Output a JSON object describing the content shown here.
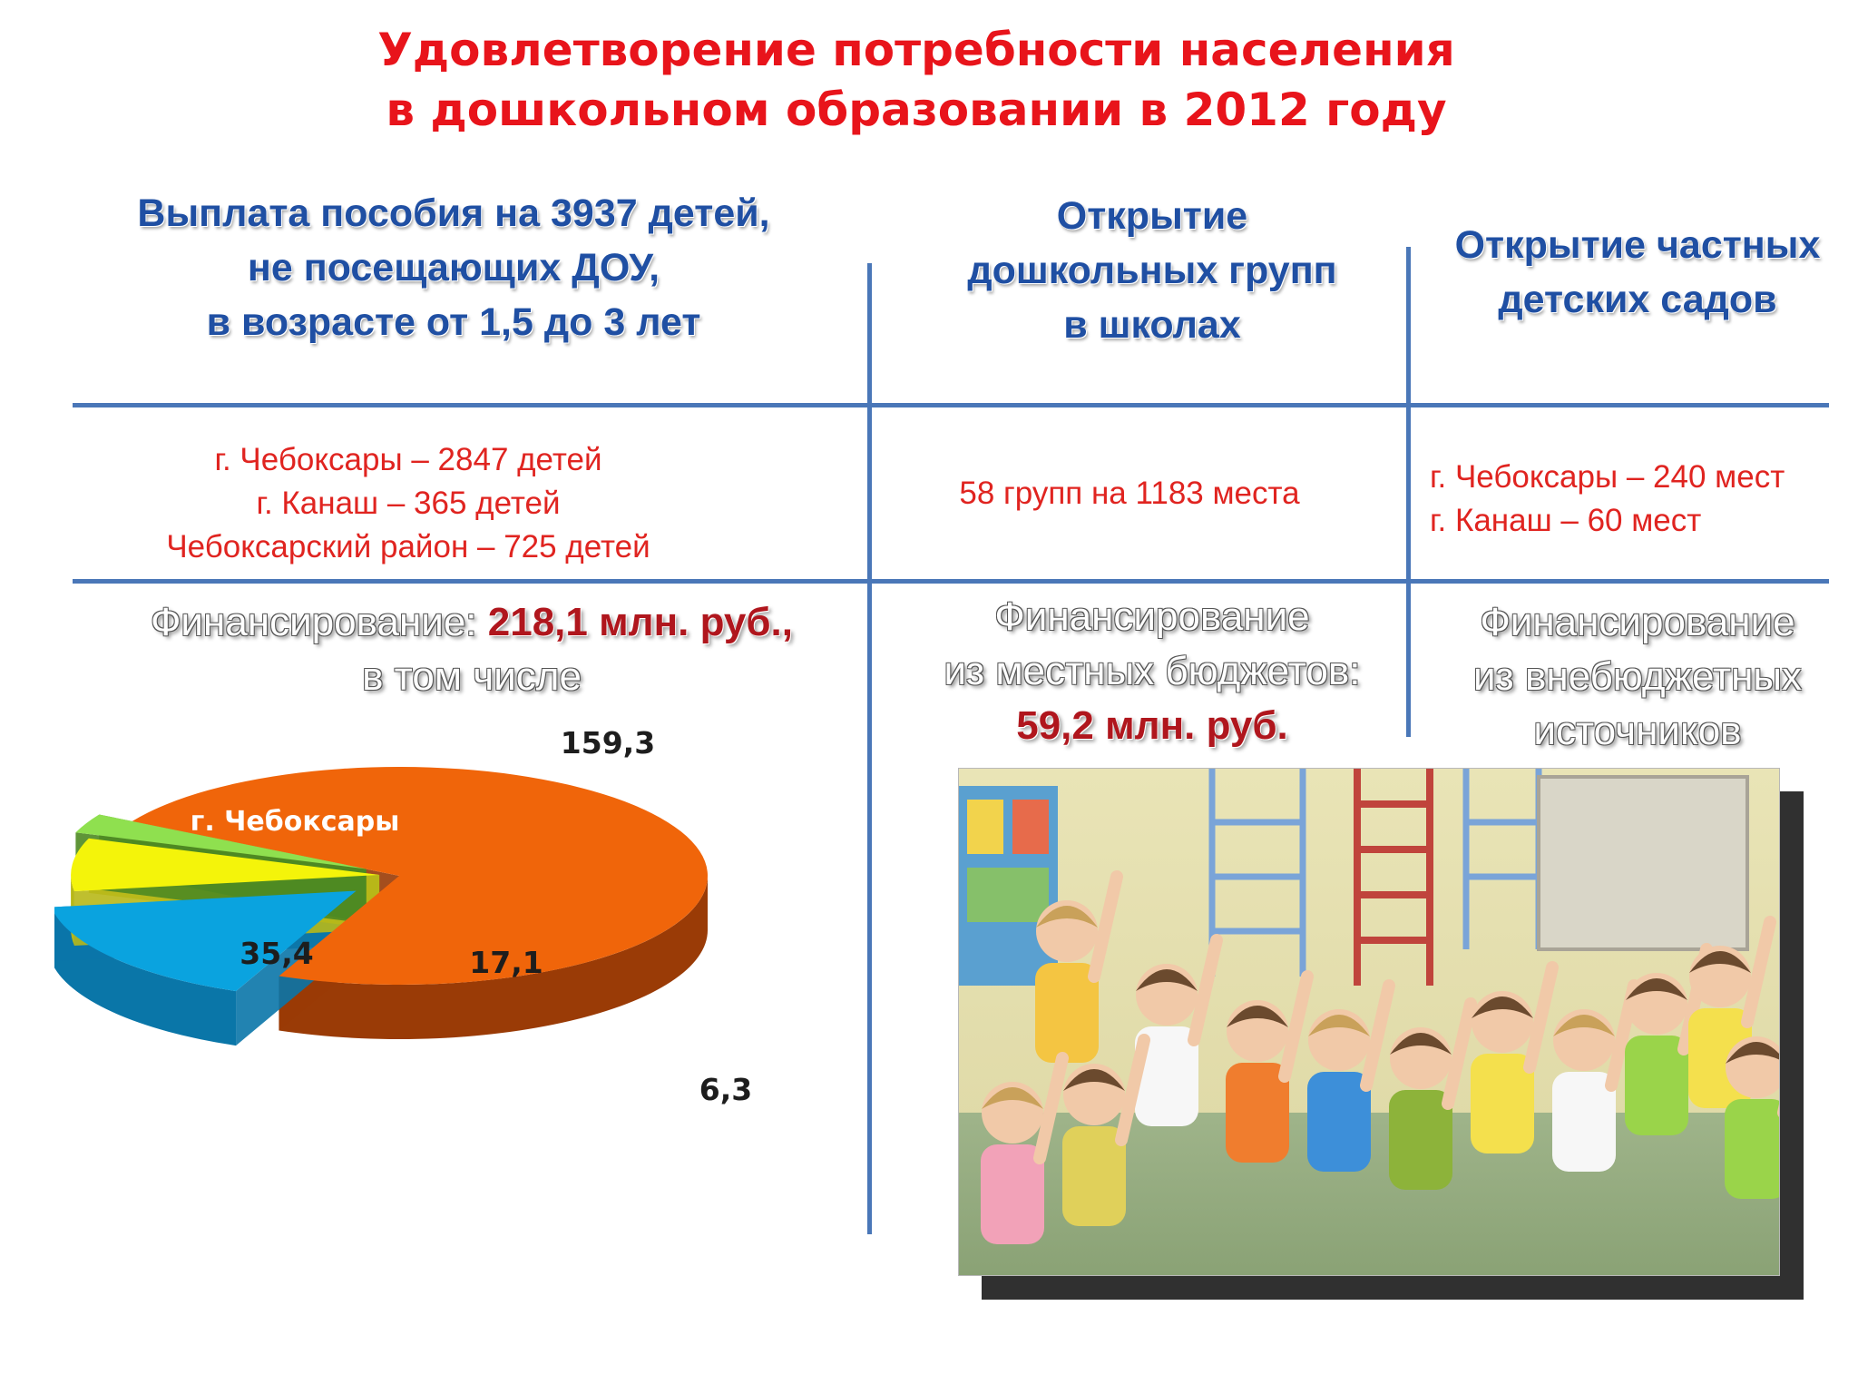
{
  "title": {
    "line1": "Удовлетворение потребности населения",
    "line2": "в дошкольном образовании в 2012 году"
  },
  "columns": [
    {
      "header": [
        "Выплата пособия на 3937 детей,",
        "не посещающих ДОУ,",
        "в возрасте от 1,5 до 3 лет"
      ],
      "details": [
        "г. Чебоксары – 2847 детей",
        "г. Канаш – 365 детей",
        "Чебоксарский район – 725 детей"
      ],
      "funding": {
        "prefix": "Финансирование: ",
        "amount": "218,1 млн. руб.,",
        "suffix": "в том числе"
      }
    },
    {
      "header": [
        "Открытие",
        "дошкольных групп",
        "в школах"
      ],
      "details": [
        "58 групп на 1183 места"
      ],
      "funding": {
        "line1": "Финансирование",
        "line2": "из местных бюджетов:",
        "amount": "59,2 млн. руб."
      }
    },
    {
      "header": [
        "Открытие частных",
        "детских садов"
      ],
      "details": [
        "г. Чебоксары – 240 мест",
        "г. Канаш – 60 мест"
      ],
      "funding": {
        "line1": "Финансирование",
        "line2": "из внебюджетных",
        "line3": "источников"
      }
    }
  ],
  "chart_data": {
    "type": "pie",
    "style": "3d-exploded",
    "title": "",
    "slices": [
      {
        "label": "г. Чебоксары",
        "value": 159.3,
        "value_label": "159,3",
        "color": "#f0650a",
        "side_color": "#9a3b06"
      },
      {
        "label": "",
        "value": 35.4,
        "value_label": "35,4",
        "color": "#0aa3df",
        "side_color": "#0a76a8"
      },
      {
        "label": "",
        "value": 17.1,
        "value_label": "17,1",
        "color": "#f4f40a",
        "side_color": "#b8b818"
      },
      {
        "label": "",
        "value": 6.3,
        "value_label": "6,3",
        "color": "#8fe04f",
        "side_color": "#4e8a22"
      }
    ]
  },
  "photo": {
    "description_icon": "children-group-photo"
  },
  "colors": {
    "title": "#e8141b",
    "header": "#1f4fa3",
    "divider": "#4a77b8",
    "detail_text": "#e02420",
    "amount": "#b0161d"
  }
}
